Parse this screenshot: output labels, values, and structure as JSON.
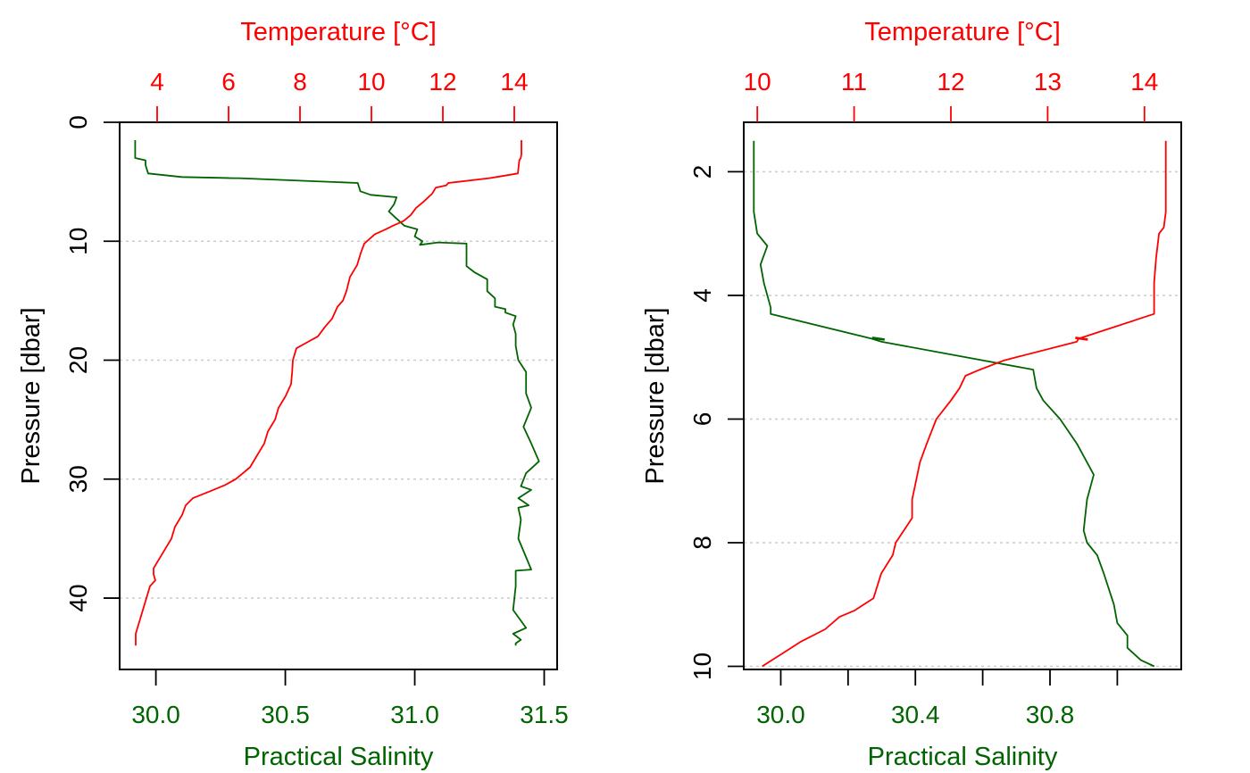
{
  "colors": {
    "salinity": "#006400",
    "temperature": "#ff0000",
    "axes": "#000000",
    "grid": "#cccccc"
  },
  "chart_data": [
    {
      "type": "line",
      "title": "",
      "xlabel": "Practical Salinity",
      "x2label": "Temperature [°C]",
      "ylabel": "Pressure [dbar]",
      "y_reversed": true,
      "xlim": [
        29.86,
        31.55
      ],
      "x2lim": [
        2.95,
        15.2
      ],
      "ylim": [
        0,
        46
      ],
      "xticks": [
        "30.0",
        "30.5",
        "31.0",
        "31.5"
      ],
      "x2ticks": [
        "4",
        "6",
        "8",
        "10",
        "12",
        "14"
      ],
      "yticks": [
        "0",
        "10",
        "20",
        "30",
        "40"
      ],
      "grid": "horizontal dotted",
      "series": [
        {
          "quantity": "salinity",
          "x": [
            29.92,
            29.92,
            29.92,
            29.96,
            29.96,
            29.97,
            30.1,
            30.3,
            30.32,
            30.78,
            30.79,
            30.83,
            30.93,
            30.92,
            30.9,
            30.92,
            30.94,
            30.96,
            31.01,
            31.0,
            31.03,
            31.02,
            31.09,
            31.2,
            31.2,
            31.2,
            31.23,
            31.28,
            31.28,
            31.31,
            31.31,
            31.35,
            31.35,
            31.39,
            31.38,
            31.39,
            31.39,
            31.4,
            31.43,
            31.43,
            31.45,
            31.42,
            31.45,
            31.48,
            31.43,
            31.41,
            31.45,
            31.4,
            31.44,
            31.4,
            31.41,
            31.4,
            31.45,
            31.39,
            31.39,
            31.38,
            31.43,
            31.38,
            31.41,
            31.39,
            31.39
          ],
          "y": [
            1.5,
            2.7,
            3.0,
            3.2,
            3.6,
            4.3,
            4.6,
            4.7,
            4.7,
            5.1,
            5.8,
            6.1,
            6.3,
            6.9,
            7.5,
            7.9,
            8.3,
            8.7,
            9.0,
            9.6,
            10.0,
            10.3,
            10.1,
            10.2,
            11.3,
            12.1,
            12.6,
            13.2,
            14.2,
            14.8,
            15.5,
            15.7,
            16.0,
            16.3,
            17.0,
            17.8,
            18.8,
            20.0,
            21.0,
            22.8,
            24.0,
            25.6,
            27.0,
            28.5,
            29.5,
            30.6,
            30.9,
            31.6,
            32.2,
            32.4,
            33.4,
            35.0,
            37.6,
            37.7,
            39.0,
            41.0,
            42.5,
            43.0,
            43.5,
            43.8,
            44.0
          ]
        },
        {
          "quantity": "temperature",
          "x": [
            14.2,
            14.2,
            14.18,
            14.14,
            14.1,
            13.5,
            13.3,
            12.15,
            12.1,
            11.8,
            11.7,
            11.45,
            11.25,
            11.1,
            10.9,
            10.6,
            10.4,
            10.1,
            9.95,
            9.8,
            9.7,
            9.6,
            9.5,
            9.4,
            9.3,
            9.2,
            9.05,
            8.9,
            8.7,
            8.5,
            8.2,
            7.9,
            7.8,
            7.78,
            7.75,
            7.6,
            7.4,
            7.3,
            7.1,
            7.0,
            6.8,
            6.6,
            6.2,
            5.9,
            5.5,
            5.0,
            4.8,
            4.7,
            4.5,
            4.4,
            4.2,
            3.9,
            3.9,
            3.95,
            3.8,
            3.7,
            3.6,
            3.5,
            3.4,
            3.4
          ],
          "y": [
            1.5,
            2.7,
            3.0,
            3.2,
            4.3,
            4.6,
            4.7,
            5.1,
            5.3,
            5.5,
            6.0,
            6.7,
            7.2,
            7.8,
            8.3,
            8.7,
            9.0,
            9.4,
            9.8,
            10.2,
            11.0,
            12.0,
            12.5,
            13.0,
            14.2,
            15.0,
            15.5,
            16.5,
            17.2,
            18.0,
            18.5,
            19.0,
            20.0,
            21.0,
            22.0,
            23.0,
            24.0,
            25.0,
            26.0,
            27.0,
            28.0,
            29.0,
            30.0,
            30.5,
            31.0,
            31.6,
            32.2,
            33.0,
            34.0,
            35.0,
            36.0,
            37.5,
            38.0,
            38.5,
            39.0,
            40.0,
            41.0,
            42.0,
            43.0,
            44.0
          ]
        }
      ]
    },
    {
      "type": "line",
      "title": "",
      "xlabel": "Practical Salinity",
      "x2label": "Temperature [°C]",
      "ylabel": "Pressure [dbar]",
      "y_reversed": true,
      "xlim": [
        29.89,
        31.19
      ],
      "x2lim": [
        9.86,
        14.38
      ],
      "ylim": [
        1.2,
        10.05
      ],
      "xticks": [
        "30.0",
        "",
        "30.4",
        "",
        "30.8",
        ""
      ],
      "xtick_values": [
        30.0,
        30.2,
        30.4,
        30.6,
        30.8,
        31.0
      ],
      "x2ticks": [
        "10",
        "11",
        "12",
        "13",
        "14"
      ],
      "yticks": [
        "2",
        "4",
        "6",
        "8",
        "10"
      ],
      "grid": "horizontal dotted",
      "series": [
        {
          "quantity": "salinity",
          "x": [
            29.92,
            29.92,
            29.92,
            29.92,
            29.93,
            29.96,
            29.94,
            29.95,
            29.96,
            29.97,
            29.97,
            30.27,
            30.3,
            30.75,
            30.76,
            30.78,
            30.83,
            30.88,
            30.93,
            30.91,
            30.9,
            30.91,
            30.94,
            30.96,
            30.99,
            31.0,
            31.03,
            31.03,
            31.07,
            31.11
          ],
          "y": [
            1.5,
            2.0,
            2.5,
            2.65,
            3.0,
            3.2,
            3.5,
            3.8,
            4.0,
            4.2,
            4.3,
            4.7,
            4.75,
            5.2,
            5.5,
            5.7,
            6.0,
            6.4,
            6.9,
            7.3,
            7.8,
            8.0,
            8.2,
            8.5,
            9.0,
            9.3,
            9.5,
            9.7,
            9.9,
            10.0
          ],
          "marker": {
            "x": 30.29,
            "y": 4.7
          }
        },
        {
          "quantity": "temperature",
          "x": [
            14.22,
            14.22,
            14.22,
            14.22,
            14.2,
            14.15,
            14.12,
            14.1,
            14.1,
            14.1,
            13.32,
            13.3,
            12.55,
            12.3,
            12.15,
            12.09,
            12.0,
            11.85,
            11.75,
            11.68,
            11.64,
            11.6,
            11.6,
            11.43,
            11.4,
            11.28,
            11.2,
            11.0,
            10.85,
            10.7,
            10.45,
            10.25,
            10.05
          ],
          "y": [
            1.5,
            2.0,
            2.5,
            2.65,
            2.9,
            3.0,
            3.4,
            3.8,
            4.0,
            4.3,
            4.7,
            4.75,
            5.05,
            5.2,
            5.3,
            5.5,
            5.7,
            6.0,
            6.4,
            6.7,
            7.0,
            7.3,
            7.6,
            8.0,
            8.2,
            8.5,
            8.9,
            9.1,
            9.2,
            9.4,
            9.6,
            9.8,
            10.0
          ],
          "marker": {
            "x": 13.35,
            "y": 4.7
          }
        }
      ]
    }
  ]
}
